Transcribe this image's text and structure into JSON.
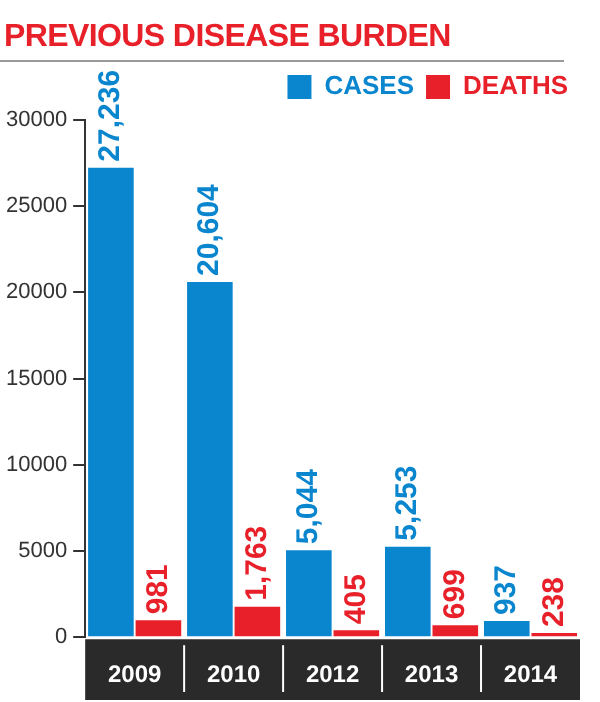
{
  "chart_data": {
    "type": "bar",
    "title": "PREVIOUS DISEASE BURDEN",
    "categories": [
      "2009",
      "2010",
      "2012",
      "2013",
      "2014"
    ],
    "series": [
      {
        "name": "CASES",
        "color": "#0a86cf",
        "values": [
          27236,
          20604,
          5044,
          5253,
          937
        ],
        "value_labels": [
          "27,236",
          "20,604",
          "5,044",
          "5,253",
          "937"
        ]
      },
      {
        "name": "DEATHS",
        "color": "#e8202a",
        "values": [
          981,
          1763,
          405,
          699,
          238
        ],
        "value_labels": [
          "981",
          "1,763",
          "405",
          "699",
          "238"
        ]
      }
    ],
    "ylim": [
      0,
      30000
    ],
    "yticks": [
      0,
      5000,
      10000,
      15000,
      20000,
      25000,
      30000
    ],
    "grid": false,
    "legend": "top right"
  }
}
